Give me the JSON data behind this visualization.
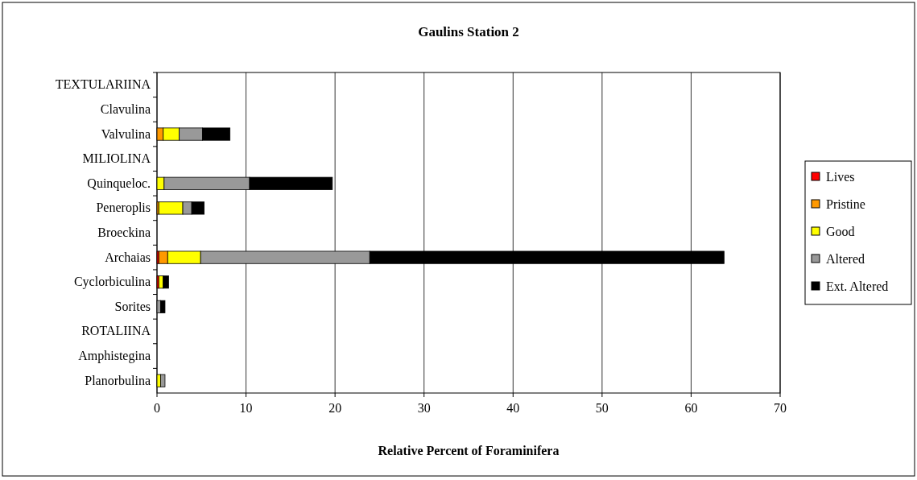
{
  "chart_data": {
    "type": "bar",
    "orientation": "horizontal",
    "stacked": true,
    "title": "Gaulins Station 2",
    "xlabel": "Relative Percent of Foraminifera",
    "categories": [
      "TEXTULARIINA",
      "Clavulina",
      "Valvulina",
      "MILIOLINA",
      "Quinqueloc.",
      "Peneroplis",
      "Broeckina",
      "Archaias",
      "Cyclorbiculina",
      "Sorites",
      "ROTALIINA",
      "Amphistegina",
      "Planorbulina"
    ],
    "series": [
      {
        "name": "Lives",
        "color": "#ff0000",
        "values": [
          0,
          0,
          0,
          0,
          0,
          0,
          0,
          0.2,
          0.2,
          0,
          0,
          0,
          0
        ]
      },
      {
        "name": "Pristine",
        "color": "#ff9900",
        "values": [
          0,
          0,
          0.7,
          0,
          0,
          0.2,
          0,
          1.0,
          0,
          0,
          0,
          0,
          0
        ]
      },
      {
        "name": "Good",
        "color": "#ffff00",
        "values": [
          0,
          0,
          1.8,
          0,
          0.8,
          2.7,
          0,
          3.7,
          0.5,
          0,
          0,
          0,
          0.4
        ]
      },
      {
        "name": "Altered",
        "color": "#999999",
        "values": [
          0,
          0,
          2.6,
          0,
          9.6,
          1.0,
          0,
          19.0,
          0,
          0.4,
          0,
          0,
          0.5
        ]
      },
      {
        "name": "Ext. Altered",
        "color": "#000000",
        "values": [
          0,
          0,
          3.1,
          0,
          9.3,
          1.4,
          0,
          39.8,
          0.6,
          0.5,
          0,
          0,
          0
        ]
      }
    ],
    "xlim": [
      0,
      70
    ],
    "xticks": [
      0,
      10,
      20,
      30,
      40,
      50,
      60,
      70
    ],
    "grid": "x",
    "legend": "right"
  }
}
